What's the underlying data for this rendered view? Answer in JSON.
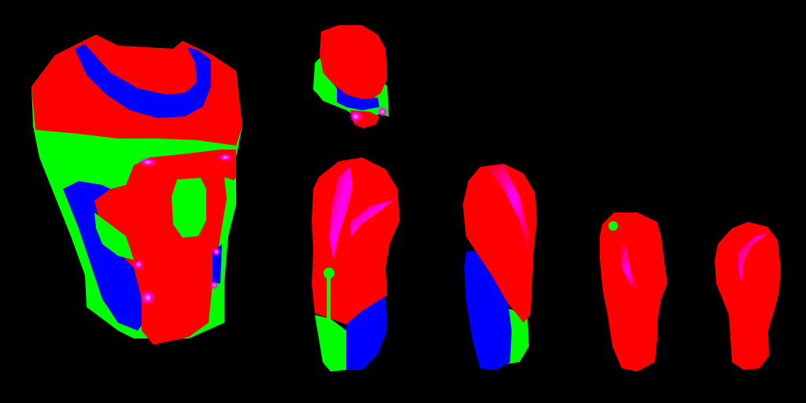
{
  "colors": {
    "background": "#000000",
    "red": "#ff0000",
    "green": "#00ff00",
    "blue": "#0000ff",
    "magenta": "#ff00ff"
  },
  "parts": [
    "torso",
    "helmet",
    "upper-arm-left",
    "upper-arm-right",
    "forearm-left",
    "forearm-right"
  ]
}
